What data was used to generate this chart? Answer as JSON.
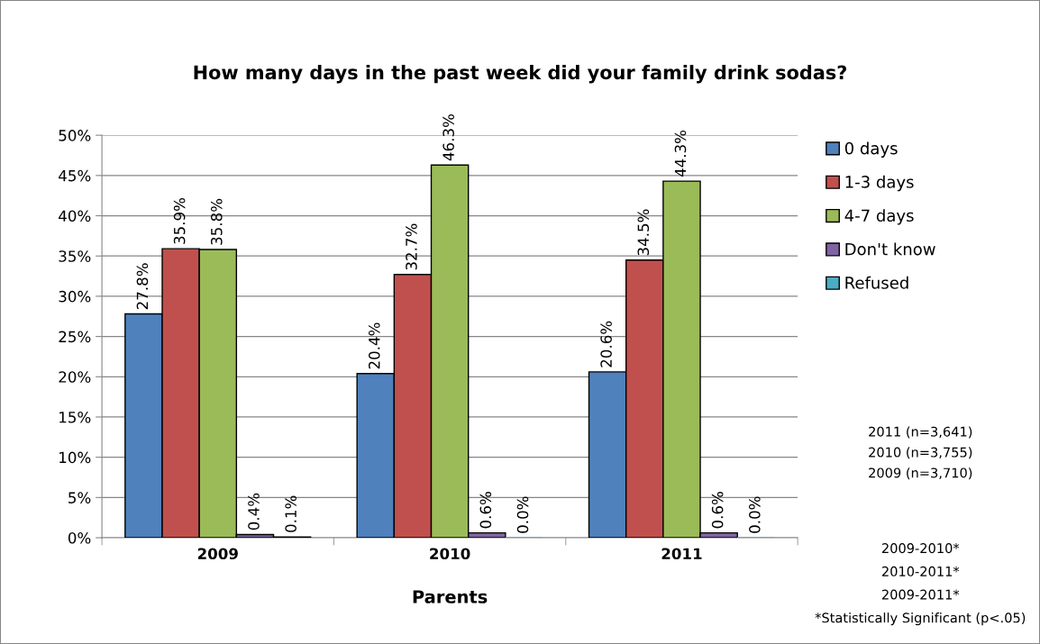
{
  "chart_data": {
    "type": "bar",
    "title": "How many days in the past week did your family drink sodas?",
    "xlabel": "Parents",
    "categories": [
      "2009",
      "2010",
      "2011"
    ],
    "series": [
      {
        "name": "0 days",
        "color": "#4f81bd",
        "values": [
          27.8,
          20.4,
          20.6
        ],
        "value_labels": [
          "27.8%",
          "20.4%",
          "20.6%"
        ]
      },
      {
        "name": "1-3 days",
        "color": "#c0504d",
        "values": [
          35.9,
          32.7,
          34.5
        ],
        "value_labels": [
          "35.9%",
          "32.7%",
          "34.5%"
        ]
      },
      {
        "name": "4-7 days",
        "color": "#9bbb59",
        "values": [
          35.8,
          46.3,
          44.3
        ],
        "value_labels": [
          "35.8%",
          "46.3%",
          "44.3%"
        ]
      },
      {
        "name": "Don't know",
        "color": "#8064a2",
        "values": [
          0.4,
          0.6,
          0.6
        ],
        "value_labels": [
          "0.4%",
          "0.6%",
          "0.6%"
        ]
      },
      {
        "name": "Refused",
        "color": "#4bacc6",
        "values": [
          0.1,
          0.0,
          0.0
        ],
        "value_labels": [
          "0.1%",
          "0.0%",
          "0.0%"
        ]
      }
    ],
    "ylim": [
      0,
      50
    ],
    "yticks": [
      {
        "value": 0,
        "label": "0%"
      },
      {
        "value": 5,
        "label": "5%"
      },
      {
        "value": 10,
        "label": "10%"
      },
      {
        "value": 15,
        "label": "15%"
      },
      {
        "value": 20,
        "label": "20%"
      },
      {
        "value": 25,
        "label": "25%"
      },
      {
        "value": 30,
        "label": "30%"
      },
      {
        "value": 35,
        "label": "35%"
      },
      {
        "value": 40,
        "label": "40%"
      },
      {
        "value": 45,
        "label": "45%"
      },
      {
        "value": 50,
        "label": "50%"
      }
    ],
    "grid": "y",
    "legend": "right",
    "annotations": [
      "2011 (n=3,641)",
      "2010 (n=3,755)",
      "2009 (n=3,710)",
      "2009-2010*",
      "2010-2011*",
      "2009-2011*",
      "*Statistically Significant (p<.05)"
    ]
  }
}
